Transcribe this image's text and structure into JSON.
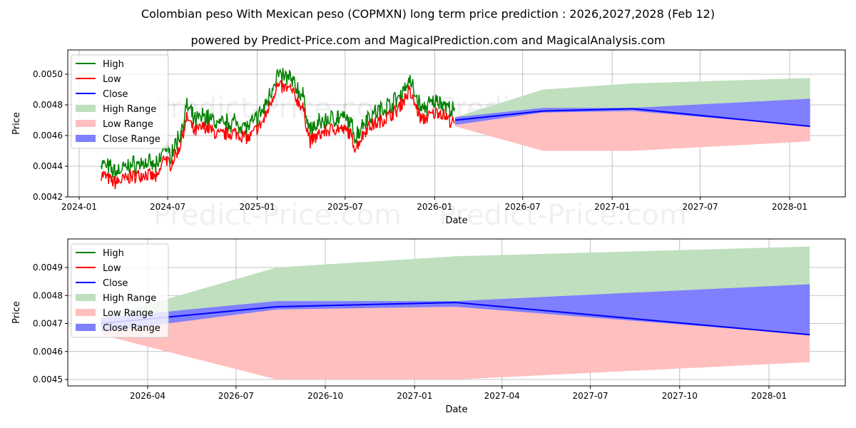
{
  "title": "Colombian peso With Mexican peso (COPMXN) long term price prediction : 2026,2027,2028 (Feb 12)",
  "subtitle": "powered by Predict-Price.com and MagicalPrediction.com and MagicalAnalysis.com",
  "watermark": "Predict-Price.com",
  "legend": [
    "High",
    "Low",
    "Close",
    "High Range",
    "Low Range",
    "Close Range"
  ],
  "colors": {
    "high": "#008000",
    "low": "#ff0000",
    "close": "#0000ff",
    "high_range": "#bfdfbf",
    "low_range": "#ffbfbf",
    "close_range": "#7f7fff"
  },
  "chart_data": [
    {
      "type": "line",
      "xlabel": "Date",
      "ylabel": "Price",
      "ylim": [
        0.00419,
        0.00515
      ],
      "xticks": [
        "2024-01",
        "2024-07",
        "2025-01",
        "2025-07",
        "2026-01",
        "2026-07",
        "2027-01",
        "2027-07",
        "2028-01"
      ],
      "yticks": [
        "0.0042",
        "0.0044",
        "0.0046",
        "0.0048",
        "0.0050"
      ],
      "history_low": [
        [
          "2024-02-15",
          0.00435
        ],
        [
          "2024-03-15",
          0.00429
        ],
        [
          "2024-04-15",
          0.00433
        ],
        [
          "2024-05-15",
          0.00435
        ],
        [
          "2024-06-10",
          0.00432
        ],
        [
          "2024-06-25",
          0.00447
        ],
        [
          "2024-07-05",
          0.0044
        ],
        [
          "2024-07-25",
          0.00452
        ],
        [
          "2024-08-10",
          0.00472
        ],
        [
          "2024-08-25",
          0.00462
        ],
        [
          "2024-09-15",
          0.00466
        ],
        [
          "2024-10-15",
          0.0046
        ],
        [
          "2024-11-15",
          0.00462
        ],
        [
          "2024-12-15",
          0.00458
        ],
        [
          "2025-01-15",
          0.0047
        ],
        [
          "2025-02-10",
          0.00492
        ],
        [
          "2025-03-10",
          0.0049
        ],
        [
          "2025-04-05",
          0.00478
        ],
        [
          "2025-04-20",
          0.00456
        ],
        [
          "2025-05-15",
          0.00462
        ],
        [
          "2025-06-15",
          0.00465
        ],
        [
          "2025-07-10",
          0.00462
        ],
        [
          "2025-07-22",
          0.00452
        ],
        [
          "2025-08-15",
          0.00465
        ],
        [
          "2025-09-15",
          0.0047
        ],
        [
          "2025-10-15",
          0.00476
        ],
        [
          "2025-11-10",
          0.00489
        ],
        [
          "2025-12-05",
          0.0047
        ],
        [
          "2026-01-10",
          0.00476
        ],
        [
          "2026-02-12",
          0.00467
        ]
      ],
      "high_offset": 8e-05
    },
    {
      "type": "line",
      "xlabel": "Date",
      "ylabel": "Price",
      "ylim": [
        0.00448,
        0.005
      ],
      "xticks": [
        "2026-04",
        "2026-07",
        "2026-10",
        "2027-01",
        "2027-04",
        "2027-07",
        "2027-10",
        "2028-01"
      ],
      "yticks": [
        "0.0045",
        "0.0046",
        "0.0047",
        "0.0048",
        "0.0049"
      ]
    }
  ],
  "prediction": {
    "dates": [
      "2026-02-12",
      "2026-08-12",
      "2027-02-12",
      "2028-02-12"
    ],
    "close": [
      0.0047,
      0.00476,
      0.004775,
      0.00466
    ],
    "high_range": [
      [
        0.00471,
        0.00472
      ],
      [
        0.00476,
        0.0049
      ],
      [
        0.004775,
        0.00494
      ],
      [
        0.00466,
        0.004975
      ]
    ],
    "low_range": [
      [
        0.00466,
        0.0047
      ],
      [
        0.0045,
        0.00476
      ],
      [
        0.0045,
        0.004775
      ],
      [
        0.004562,
        0.00466
      ]
    ],
    "close_range": [
      [
        0.00467,
        0.00472
      ],
      [
        0.00475,
        0.00478
      ],
      [
        0.00476,
        0.00478
      ],
      [
        0.00466,
        0.00484
      ]
    ]
  }
}
